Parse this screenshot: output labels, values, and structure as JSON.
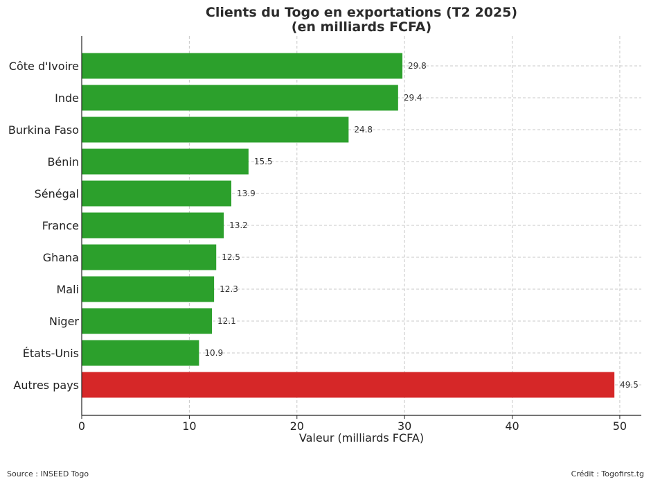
{
  "chart_data": {
    "type": "bar",
    "orientation": "horizontal",
    "title_lines": [
      "Clients du Togo en exportations (T2 2025)",
      "(en milliards FCFA)"
    ],
    "xlabel": "Valeur (milliards FCFA)",
    "ylabel": "",
    "categories": [
      "Côte d'Ivoire",
      "Inde",
      "Burkina Faso",
      "Bénin",
      "Sénégal",
      "France",
      "Ghana",
      "Mali",
      "Niger",
      "États-Unis",
      "Autres pays"
    ],
    "values": [
      29.8,
      29.4,
      24.8,
      15.5,
      13.9,
      13.2,
      12.5,
      12.3,
      12.1,
      10.9,
      49.5
    ],
    "value_labels": [
      "29.8",
      "29.4",
      "24.8",
      "15.5",
      "13.9",
      "13.2",
      "12.5",
      "12.3",
      "12.1",
      "10.9",
      "49.5"
    ],
    "xlim": [
      0,
      52
    ],
    "xticks": [
      0,
      10,
      20,
      30,
      40,
      50
    ],
    "grid": true,
    "bar_colors": [
      "#2ca02c",
      "#2ca02c",
      "#2ca02c",
      "#2ca02c",
      "#2ca02c",
      "#2ca02c",
      "#2ca02c",
      "#2ca02c",
      "#2ca02c",
      "#2ca02c",
      "#d62728"
    ]
  },
  "footer": {
    "source": "Source : INSEED Togo",
    "credit": "Crédit : Togofirst.tg"
  }
}
